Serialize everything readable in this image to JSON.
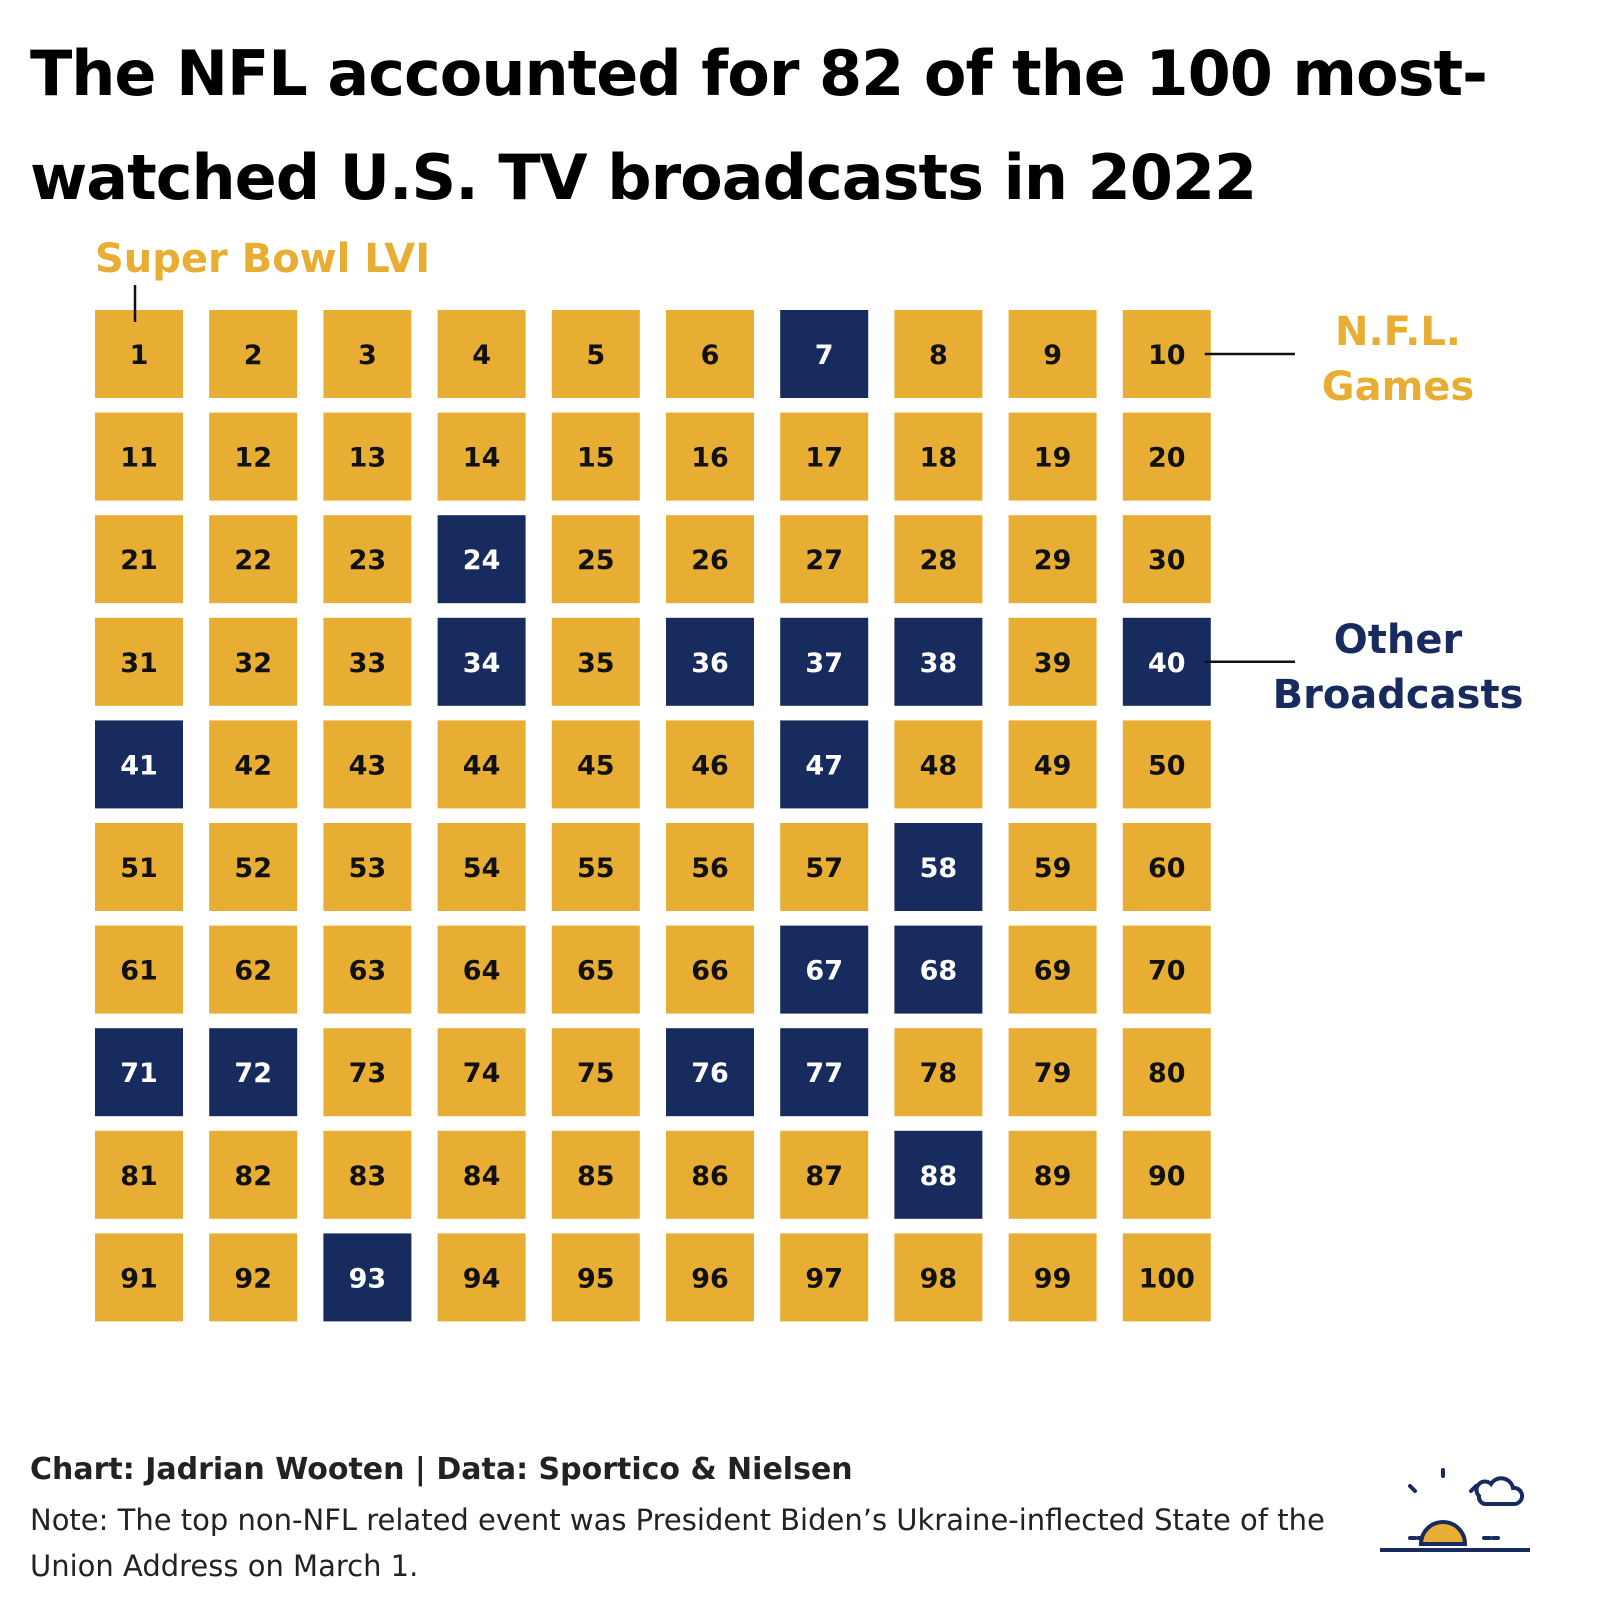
{
  "title": "The NFL accounted for 82 of the 100 most-watched U.S. TV broadcasts in 2022",
  "annotation": "Super Bowl LVI",
  "footer": {
    "credit": "Chart: Jadrian Wooten | Data: Sportico & Nielsen",
    "note": "Note: The top non-NFL related event was President Biden’s Ukraine-inflected State of the Union Address on March 1."
  },
  "colors": {
    "nfl": "#E8AE34",
    "other": "#172B5E",
    "nfl_text": "#111111",
    "other_text": "#ffffff"
  },
  "logo_icon": "sunrise-cloud-icon",
  "chart_data": {
    "type": "waffle",
    "title": "The NFL accounted for 82 of the 100 most-watched U.S. TV broadcasts in 2022",
    "categories": [
      "N.F.L. Games",
      "Other Broadcasts"
    ],
    "counts": {
      "N.F.L. Games": 82,
      "Other Broadcasts": 18
    },
    "ranks": [
      1,
      2,
      3,
      4,
      5,
      6,
      7,
      8,
      9,
      10,
      11,
      12,
      13,
      14,
      15,
      16,
      17,
      18,
      19,
      20,
      21,
      22,
      23,
      24,
      25,
      26,
      27,
      28,
      29,
      30,
      31,
      32,
      33,
      34,
      35,
      36,
      37,
      38,
      39,
      40,
      41,
      42,
      43,
      44,
      45,
      46,
      47,
      48,
      49,
      50,
      51,
      52,
      53,
      54,
      55,
      56,
      57,
      58,
      59,
      60,
      61,
      62,
      63,
      64,
      65,
      66,
      67,
      68,
      69,
      70,
      71,
      72,
      73,
      74,
      75,
      76,
      77,
      78,
      79,
      80,
      81,
      82,
      83,
      84,
      85,
      86,
      87,
      88,
      89,
      90,
      91,
      92,
      93,
      94,
      95,
      96,
      97,
      98,
      99,
      100
    ],
    "other_ranks": [
      7,
      24,
      34,
      36,
      37,
      38,
      40,
      41,
      47,
      58,
      67,
      68,
      71,
      72,
      76,
      77,
      88,
      93
    ],
    "grid": {
      "rows": 10,
      "cols": 10
    },
    "legend": [
      {
        "name": "N.F.L. Games",
        "lines": [
          "N.F.L.",
          "Games"
        ],
        "category": "nfl",
        "points_to_rank": 10
      },
      {
        "name": "Other Broadcasts",
        "lines": [
          "Other",
          "Broadcasts"
        ],
        "category": "other",
        "points_to_rank": 40
      }
    ],
    "annotation": {
      "text": "Super Bowl LVI",
      "points_to_rank": 1
    }
  }
}
